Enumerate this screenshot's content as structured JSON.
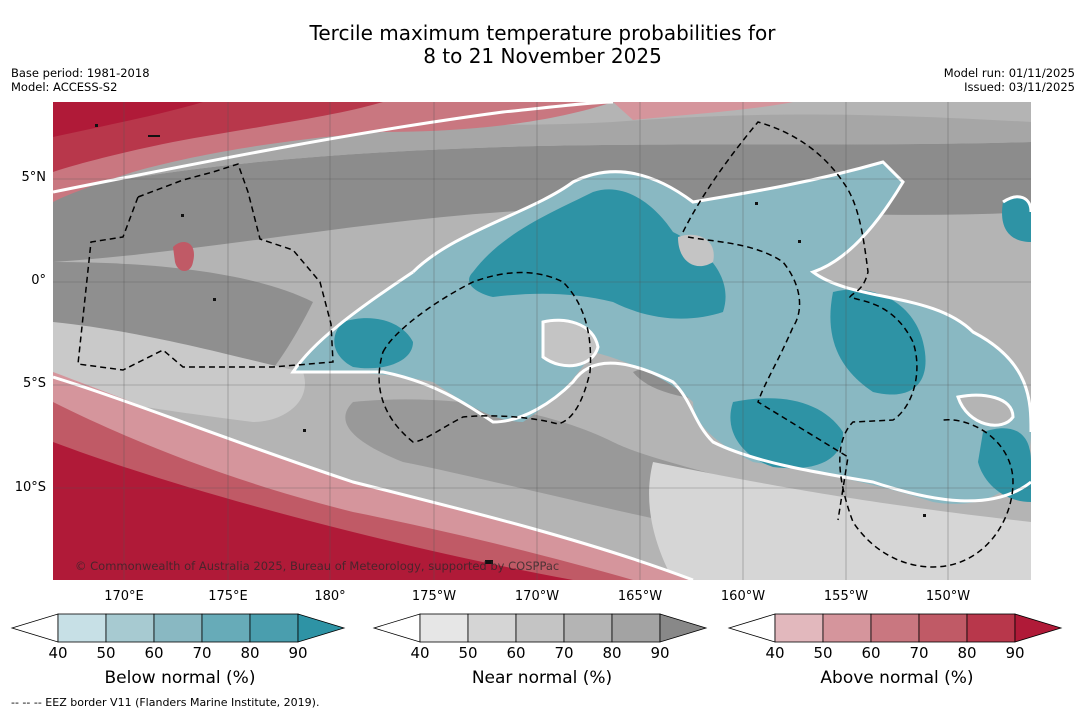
{
  "header": {
    "title_line1": "Tercile maximum temperature probabilities for",
    "title_line2": "8 to 21 November 2025",
    "base_period": "Base period: 1981-2018",
    "model": "Model: ACCESS-S2",
    "model_run": "Model run: 01/11/2025",
    "issued": "Issued: 03/11/2025"
  },
  "map": {
    "lat_labels": [
      "5°N",
      "0°",
      "5°S",
      "10°S"
    ],
    "lon_labels": [
      "170°E",
      "175°E",
      "180°",
      "175°W",
      "170°W",
      "165°W",
      "160°W",
      "155°W",
      "150°W"
    ],
    "copyright": "© Commonwealth of Australia 2025, Bureau of Meteorology, supported by COSPPac",
    "colors": {
      "grey_base": "#b4b4b4",
      "grey_dark": "#888888",
      "grey_light": "#d4d4d4",
      "blue_mid": "#6fb2bf",
      "blue_dark": "#2e93a5",
      "red_light": "#d57c86",
      "red_dark": "#b41c3b"
    }
  },
  "legend": {
    "below": {
      "title": "Below normal (%)",
      "ticks": [
        "40",
        "50",
        "60",
        "70",
        "80",
        "90"
      ],
      "colors": [
        "#ffffff",
        "#c7e0e6",
        "#a7cad1",
        "#89b8c2",
        "#67abb8",
        "#4a9eae",
        "#2e93a5"
      ]
    },
    "near": {
      "title": "Near normal (%)",
      "ticks": [
        "40",
        "50",
        "60",
        "70",
        "80",
        "90"
      ],
      "colors": [
        "#ffffff",
        "#e6e6e6",
        "#d5d5d5",
        "#c4c4c4",
        "#b4b4b4",
        "#a3a3a3",
        "#888888"
      ]
    },
    "above": {
      "title": "Above normal (%)",
      "ticks": [
        "40",
        "50",
        "60",
        "70",
        "80",
        "90"
      ],
      "colors": [
        "#ffffff",
        "#e2b8bd",
        "#d5959c",
        "#c97780",
        "#c05a66",
        "#b8374b",
        "#b01a38"
      ]
    }
  },
  "footnote": "--  --  -- EEZ border V11 (Flanders Marine Institute, 2019)."
}
